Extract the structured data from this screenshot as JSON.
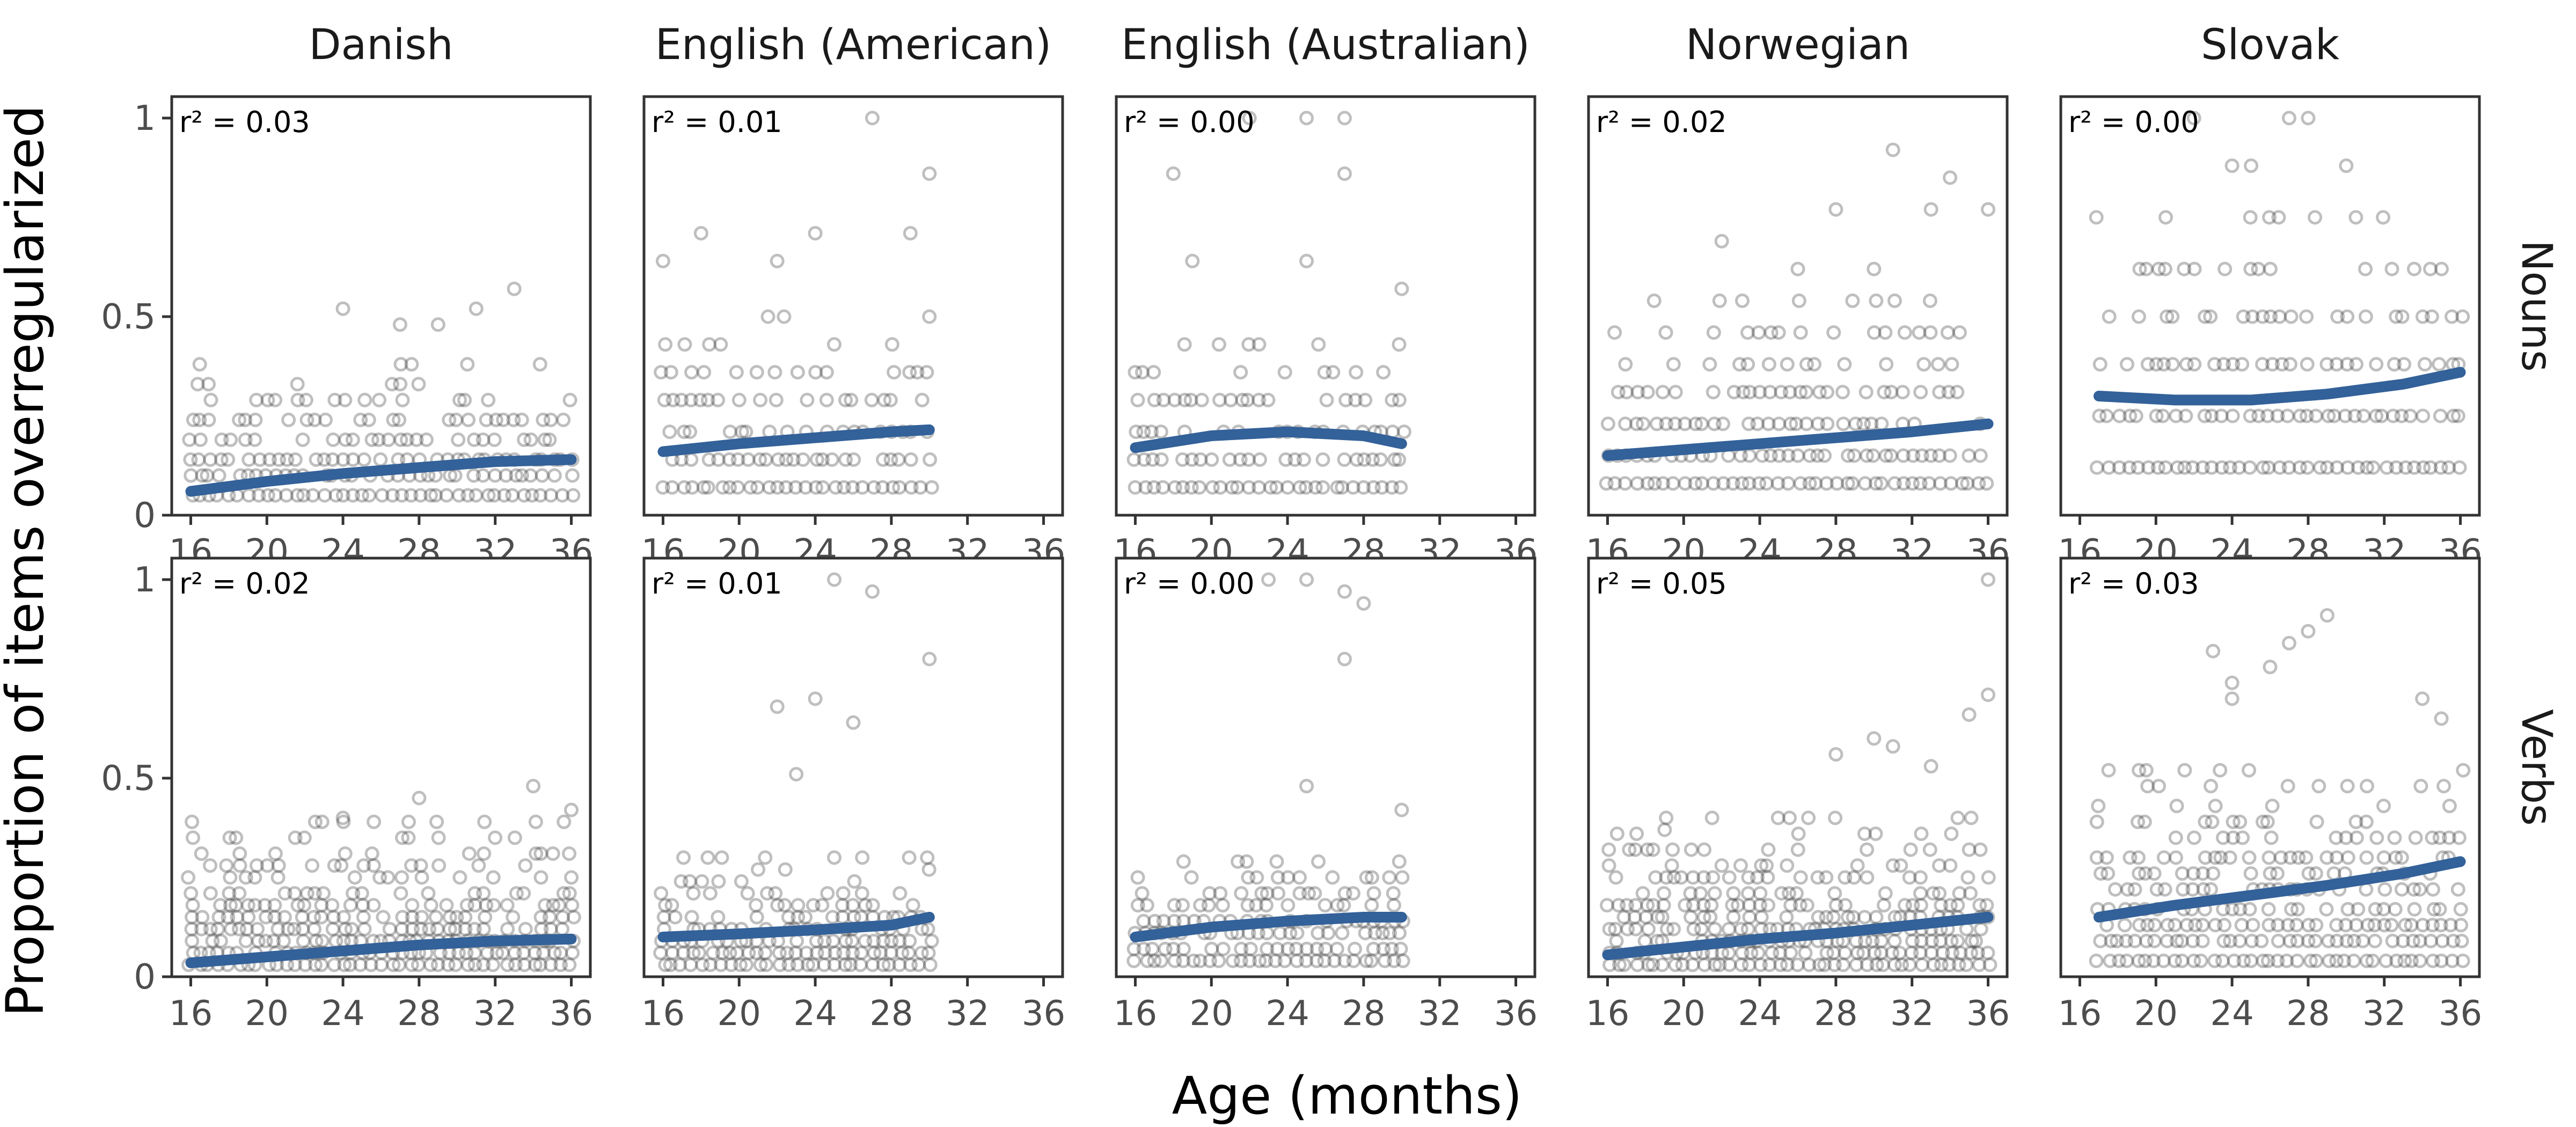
{
  "chart_data": {
    "type": "scatter",
    "xlabel": "Age (months)",
    "ylabel": "Proportion of items overregularized",
    "xlim": [
      15,
      37
    ],
    "ylim": [
      0,
      1
    ],
    "x_ticks": [
      16,
      20,
      24,
      28,
      32,
      36
    ],
    "y_ticks": [
      0,
      0.5,
      1
    ],
    "y_tick_labels": [
      "0",
      "0.5",
      "1"
    ],
    "columns": [
      "Danish",
      "English (American)",
      "English (Australian)",
      "Norwegian",
      "Slovak"
    ],
    "rows": [
      "Nouns",
      "Verbs"
    ],
    "grid": false,
    "colors": {
      "points": "#000000",
      "point_opacity": 0.25,
      "trend": "#336199",
      "frame": "#333333"
    },
    "panels": [
      {
        "language": "Danish",
        "category": "Nouns",
        "r2_label": "r² = 0.03",
        "age_range": [
          16,
          36
        ],
        "trend": {
          "x": [
            16,
            20,
            24,
            28,
            32,
            36
          ],
          "y": [
            0.06,
            0.085,
            0.105,
            0.12,
            0.135,
            0.14
          ]
        },
        "levels": [
          0.05,
          0.1,
          0.14,
          0.19,
          0.24,
          0.29,
          0.33,
          0.38
        ],
        "outliers": [
          {
            "x": 24,
            "y": 0.52
          },
          {
            "x": 33,
            "y": 0.57
          },
          {
            "x": 31,
            "y": 0.52
          },
          {
            "x": 27,
            "y": 0.48
          },
          {
            "x": 29,
            "y": 0.48
          }
        ]
      },
      {
        "language": "English (American)",
        "category": "Nouns",
        "r2_label": "r² = 0.01",
        "age_range": [
          16,
          30
        ],
        "trend": {
          "x": [
            16,
            20,
            24,
            28,
            30
          ],
          "y": [
            0.16,
            0.18,
            0.195,
            0.21,
            0.215
          ]
        },
        "levels": [
          0.07,
          0.14,
          0.21,
          0.29,
          0.36,
          0.43,
          0.5
        ],
        "outliers": [
          {
            "x": 27,
            "y": 1.0
          },
          {
            "x": 30,
            "y": 0.86
          },
          {
            "x": 18,
            "y": 0.71
          },
          {
            "x": 24,
            "y": 0.71
          },
          {
            "x": 29,
            "y": 0.71
          },
          {
            "x": 16,
            "y": 0.64
          },
          {
            "x": 22,
            "y": 0.64
          }
        ]
      },
      {
        "language": "English (Australian)",
        "category": "Nouns",
        "r2_label": "r² = 0.00",
        "age_range": [
          16,
          30
        ],
        "trend": {
          "x": [
            16,
            20,
            24,
            28,
            30
          ],
          "y": [
            0.17,
            0.2,
            0.21,
            0.2,
            0.18
          ]
        },
        "levels": [
          0.07,
          0.14,
          0.21,
          0.29,
          0.36,
          0.43
        ],
        "outliers": [
          {
            "x": 22,
            "y": 1.0
          },
          {
            "x": 25,
            "y": 1.0
          },
          {
            "x": 27,
            "y": 1.0
          },
          {
            "x": 18,
            "y": 0.86
          },
          {
            "x": 27,
            "y": 0.86
          },
          {
            "x": 19,
            "y": 0.64
          },
          {
            "x": 25,
            "y": 0.64
          },
          {
            "x": 30,
            "y": 0.57
          }
        ]
      },
      {
        "language": "Norwegian",
        "category": "Nouns",
        "r2_label": "r² = 0.02",
        "age_range": [
          16,
          36
        ],
        "trend": {
          "x": [
            16,
            20,
            24,
            28,
            32,
            36
          ],
          "y": [
            0.15,
            0.165,
            0.18,
            0.195,
            0.21,
            0.23
          ]
        },
        "levels": [
          0.08,
          0.15,
          0.23,
          0.31,
          0.38,
          0.46,
          0.54
        ],
        "outliers": [
          {
            "x": 31,
            "y": 0.92
          },
          {
            "x": 34,
            "y": 0.85
          },
          {
            "x": 36,
            "y": 0.77
          },
          {
            "x": 28,
            "y": 0.77
          },
          {
            "x": 33,
            "y": 0.77
          },
          {
            "x": 22,
            "y": 0.69
          },
          {
            "x": 26,
            "y": 0.62
          },
          {
            "x": 30,
            "y": 0.62
          }
        ]
      },
      {
        "language": "Slovak",
        "category": "Nouns",
        "r2_label": "r² = 0.00",
        "age_range": [
          17,
          36
        ],
        "trend": {
          "x": [
            17,
            21,
            25,
            29,
            33,
            36
          ],
          "y": [
            0.3,
            0.29,
            0.29,
            0.305,
            0.33,
            0.36
          ]
        },
        "levels": [
          0.12,
          0.25,
          0.38,
          0.5,
          0.62,
          0.75
        ],
        "outliers": [
          {
            "x": 22,
            "y": 1.0
          },
          {
            "x": 27,
            "y": 1.0
          },
          {
            "x": 28,
            "y": 1.0
          },
          {
            "x": 24,
            "y": 0.88
          },
          {
            "x": 25,
            "y": 0.88
          },
          {
            "x": 30,
            "y": 0.88
          }
        ]
      },
      {
        "language": "Danish",
        "category": "Verbs",
        "r2_label": "r² = 0.02",
        "age_range": [
          16,
          36
        ],
        "trend": {
          "x": [
            16,
            20,
            24,
            28,
            32,
            36
          ],
          "y": [
            0.035,
            0.05,
            0.065,
            0.08,
            0.09,
            0.095
          ]
        },
        "levels": [
          0.03,
          0.06,
          0.09,
          0.12,
          0.15,
          0.18,
          0.21,
          0.25,
          0.28,
          0.31,
          0.35,
          0.39
        ],
        "outliers": [
          {
            "x": 34,
            "y": 0.48
          },
          {
            "x": 36,
            "y": 0.42
          },
          {
            "x": 28,
            "y": 0.45
          },
          {
            "x": 24,
            "y": 0.4
          }
        ]
      },
      {
        "language": "English (American)",
        "category": "Verbs",
        "r2_label": "r² = 0.01",
        "age_range": [
          16,
          30
        ],
        "trend": {
          "x": [
            16,
            20,
            24,
            28,
            30
          ],
          "y": [
            0.1,
            0.108,
            0.118,
            0.13,
            0.15
          ]
        },
        "levels": [
          0.03,
          0.06,
          0.09,
          0.12,
          0.15,
          0.18,
          0.21,
          0.24,
          0.27,
          0.3
        ],
        "outliers": [
          {
            "x": 25,
            "y": 1.0
          },
          {
            "x": 27,
            "y": 0.97
          },
          {
            "x": 30,
            "y": 0.8
          },
          {
            "x": 24,
            "y": 0.7
          },
          {
            "x": 22,
            "y": 0.68
          },
          {
            "x": 26,
            "y": 0.64
          },
          {
            "x": 23,
            "y": 0.51
          }
        ]
      },
      {
        "language": "English (Australian)",
        "category": "Verbs",
        "r2_label": "r² = 0.00",
        "age_range": [
          16,
          30
        ],
        "trend": {
          "x": [
            16,
            20,
            24,
            28,
            30
          ],
          "y": [
            0.1,
            0.125,
            0.14,
            0.15,
            0.15
          ]
        },
        "levels": [
          0.04,
          0.07,
          0.11,
          0.14,
          0.18,
          0.21,
          0.25,
          0.29
        ],
        "outliers": [
          {
            "x": 23,
            "y": 1.0
          },
          {
            "x": 25,
            "y": 1.0
          },
          {
            "x": 27,
            "y": 0.97
          },
          {
            "x": 28,
            "y": 0.94
          },
          {
            "x": 27,
            "y": 0.8
          },
          {
            "x": 25,
            "y": 0.48
          },
          {
            "x": 30,
            "y": 0.42
          }
        ]
      },
      {
        "language": "Norwegian",
        "category": "Verbs",
        "r2_label": "r² = 0.05",
        "age_range": [
          16,
          36
        ],
        "trend": {
          "x": [
            16,
            20,
            24,
            28,
            32,
            36
          ],
          "y": [
            0.055,
            0.075,
            0.095,
            0.11,
            0.13,
            0.15
          ]
        },
        "levels": [
          0.03,
          0.06,
          0.09,
          0.12,
          0.15,
          0.18,
          0.21,
          0.25,
          0.28,
          0.32,
          0.36,
          0.4
        ],
        "outliers": [
          {
            "x": 36,
            "y": 1.0
          },
          {
            "x": 36,
            "y": 0.71
          },
          {
            "x": 35,
            "y": 0.66
          },
          {
            "x": 30,
            "y": 0.6
          },
          {
            "x": 31,
            "y": 0.58
          },
          {
            "x": 28,
            "y": 0.56
          },
          {
            "x": 33,
            "y": 0.53
          },
          {
            "x": 19,
            "y": 0.37
          }
        ]
      },
      {
        "language": "Slovak",
        "category": "Verbs",
        "r2_label": "r² = 0.03",
        "age_range": [
          17,
          36
        ],
        "trend": {
          "x": [
            17,
            21,
            25,
            29,
            33,
            36
          ],
          "y": [
            0.15,
            0.18,
            0.205,
            0.23,
            0.26,
            0.29
          ]
        },
        "levels": [
          0.04,
          0.09,
          0.13,
          0.17,
          0.22,
          0.26,
          0.3,
          0.35,
          0.39,
          0.43,
          0.48,
          0.52
        ],
        "outliers": [
          {
            "x": 29,
            "y": 0.91
          },
          {
            "x": 28,
            "y": 0.87
          },
          {
            "x": 27,
            "y": 0.84
          },
          {
            "x": 23,
            "y": 0.82
          },
          {
            "x": 26,
            "y": 0.78
          },
          {
            "x": 24,
            "y": 0.74
          },
          {
            "x": 24,
            "y": 0.7
          },
          {
            "x": 34,
            "y": 0.7
          },
          {
            "x": 35,
            "y": 0.65
          }
        ]
      }
    ]
  }
}
